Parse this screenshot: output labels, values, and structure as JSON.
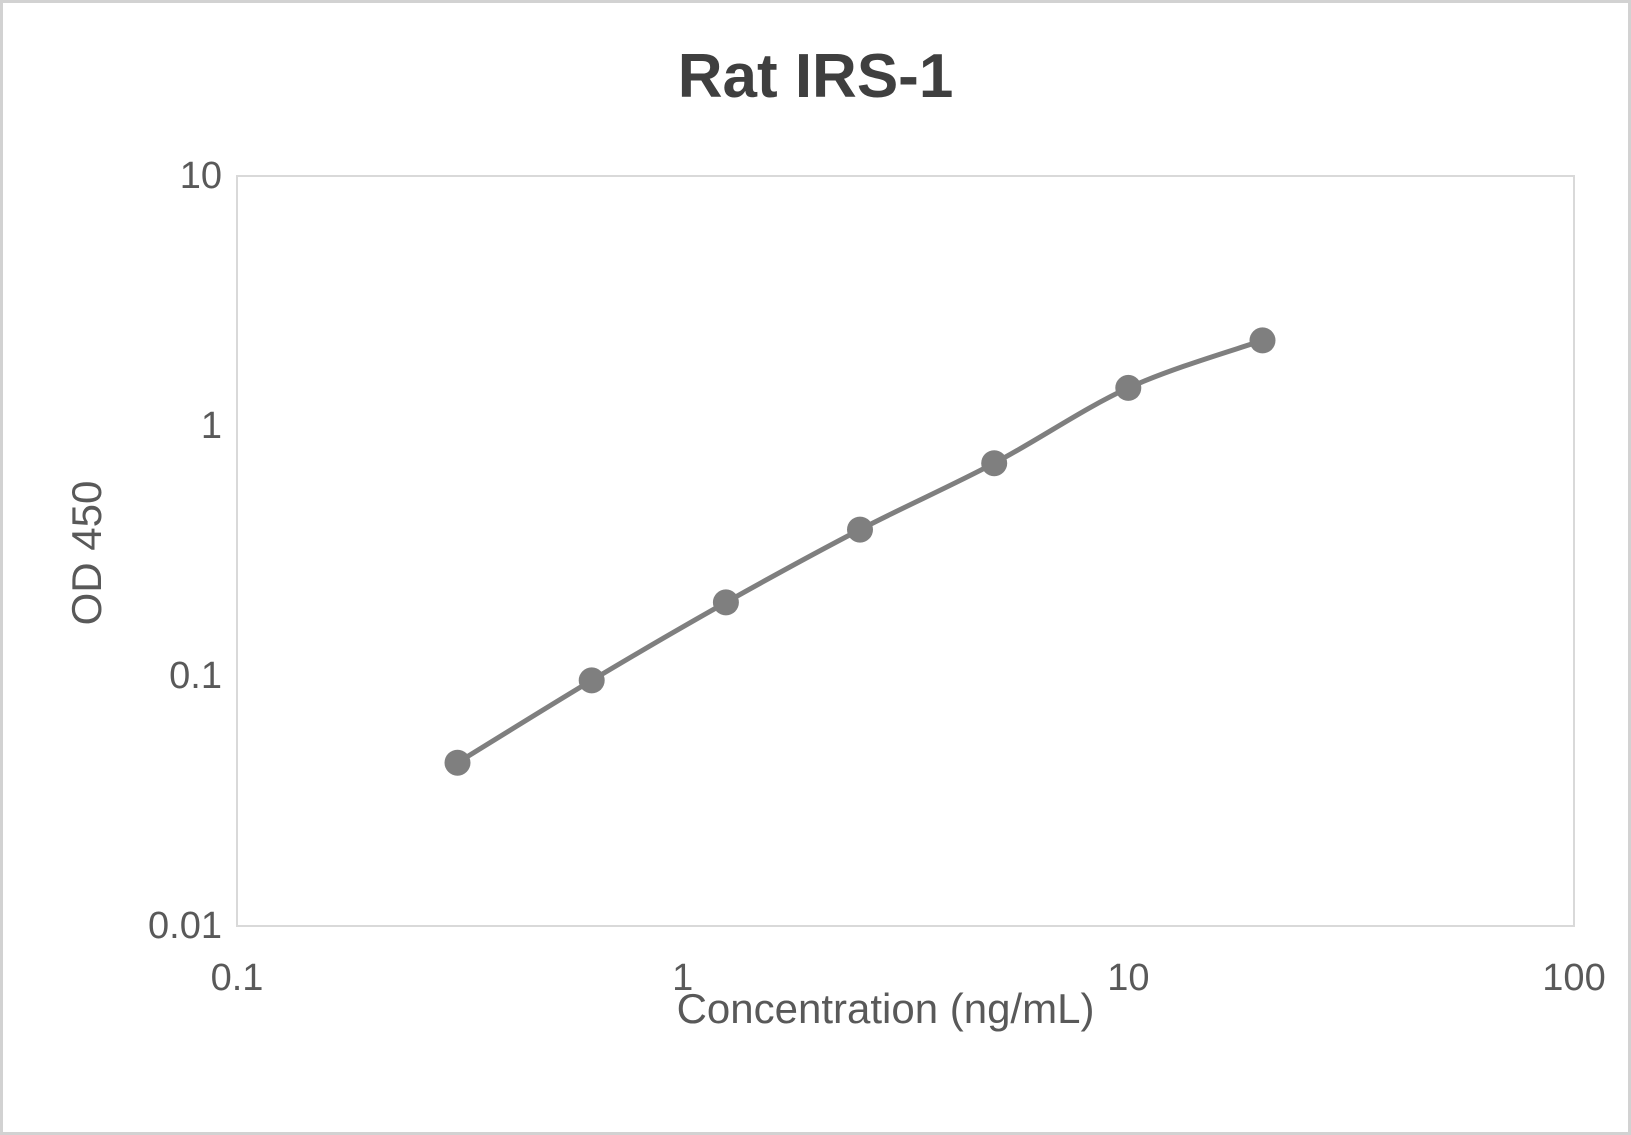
{
  "title": "Rat IRS-1",
  "chart_data": {
    "type": "line",
    "title": "Rat IRS-1",
    "xlabel": "Concentration (ng/mL)",
    "ylabel": "OD 450",
    "x_scale": "log",
    "y_scale": "log",
    "xlim": [
      0.1,
      100
    ],
    "ylim": [
      0.01,
      10
    ],
    "x_ticks": [
      "0.1",
      "1",
      "10",
      "100"
    ],
    "y_ticks": [
      "10",
      "1",
      "0.1",
      "0.01"
    ],
    "grid": false,
    "legend_position": "none",
    "line_style": "smooth",
    "series": [
      {
        "x": [
          0.3125,
          0.625,
          1.25,
          2.5,
          5,
          10,
          20
        ],
        "y": [
          0.045,
          0.096,
          0.197,
          0.385,
          0.71,
          1.42,
          2.2
        ],
        "color": "#7f7f7f",
        "marker": "circle"
      }
    ]
  },
  "colors": {
    "title_text": "#3f3f3f",
    "axis_text": "#595959",
    "series": "#7f7f7f",
    "plot_border": "#d9d9d9",
    "frame_border": "#d2d2d2",
    "background": "#ffffff"
  }
}
